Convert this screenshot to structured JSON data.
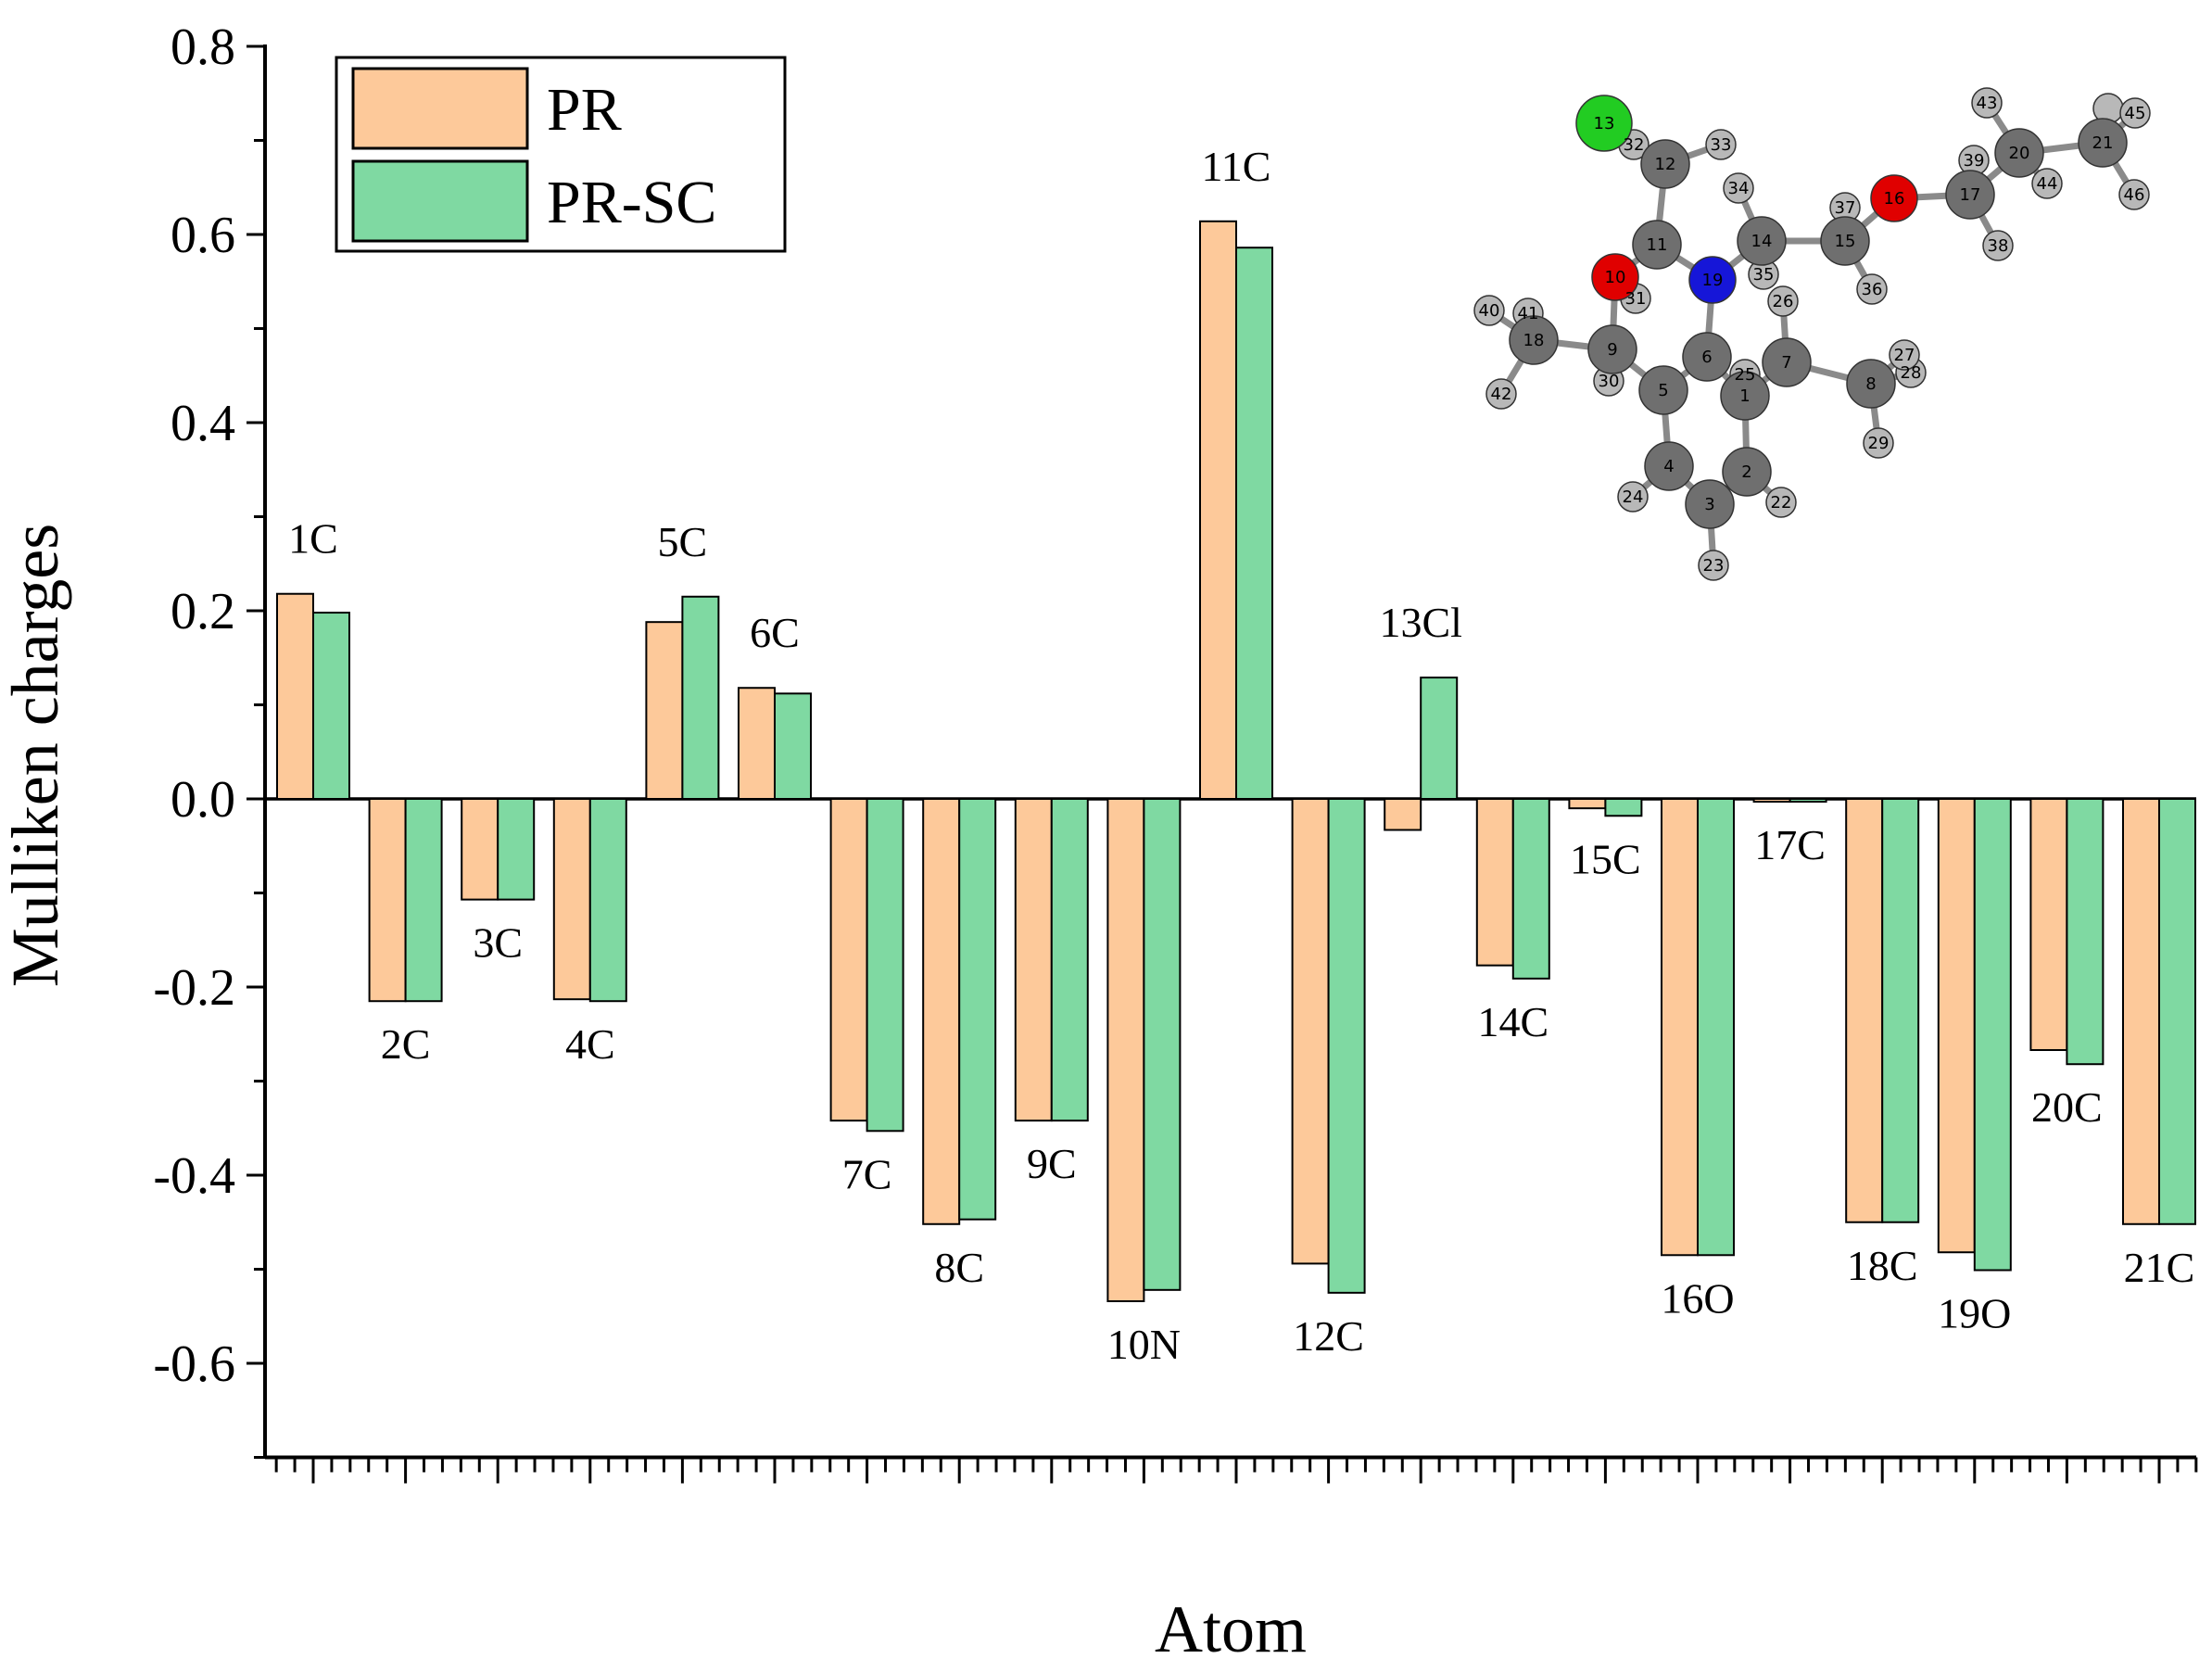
{
  "chart_data": {
    "type": "bar",
    "xlabel": "Atom",
    "ylabel": "Mulliken charges",
    "ylim": [
      -0.7,
      0.8
    ],
    "yticks": [
      "0.8",
      "0.6",
      "0.4",
      "0.2",
      "0.0",
      "-0.2",
      "-0.4",
      "-0.6"
    ],
    "yticks_values": [
      0.8,
      0.6,
      0.4,
      0.2,
      0.0,
      -0.2,
      -0.4,
      -0.6
    ],
    "categories": [
      "1C",
      "2C",
      "3C",
      "4C",
      "5C",
      "6C",
      "7C",
      "8C",
      "9C",
      "10N",
      "11C",
      "12C",
      "13Cl",
      "14C",
      "15C",
      "16O",
      "17C",
      "18C",
      "19O",
      "20C",
      "21C"
    ],
    "series": [
      {
        "name": "PR",
        "color": "#FDC99A",
        "values": [
          0.218,
          -0.215,
          -0.107,
          -0.213,
          0.188,
          0.118,
          -0.342,
          -0.452,
          -0.342,
          -0.534,
          0.614,
          -0.494,
          -0.033,
          -0.177,
          -0.01,
          -0.485,
          -0.003,
          -0.45,
          -0.482,
          -0.267,
          -0.452
        ]
      },
      {
        "name": "PR-SC",
        "color": "#7FD9A2",
        "values": [
          0.198,
          -0.215,
          -0.107,
          -0.215,
          0.215,
          0.112,
          -0.353,
          -0.447,
          -0.342,
          -0.522,
          0.586,
          -0.525,
          0.129,
          -0.191,
          -0.018,
          -0.485,
          -0.003,
          -0.45,
          -0.501,
          -0.282,
          -0.452
        ]
      }
    ],
    "legend": "top-left",
    "grid": false
  },
  "molecule": {
    "atom_numbers": [
      "1",
      "2",
      "3",
      "4",
      "5",
      "6",
      "7",
      "8",
      "9",
      "10",
      "11",
      "12",
      "13",
      "14",
      "15",
      "16",
      "17",
      "18",
      "19",
      "20",
      "21",
      "22",
      "23",
      "24",
      "25",
      "26",
      "27",
      "28",
      "29",
      "30",
      "31",
      "32",
      "33",
      "34",
      "35",
      "36",
      "37",
      "38",
      "39",
      "40",
      "41",
      "42",
      "43",
      "44",
      "45",
      "46"
    ]
  }
}
